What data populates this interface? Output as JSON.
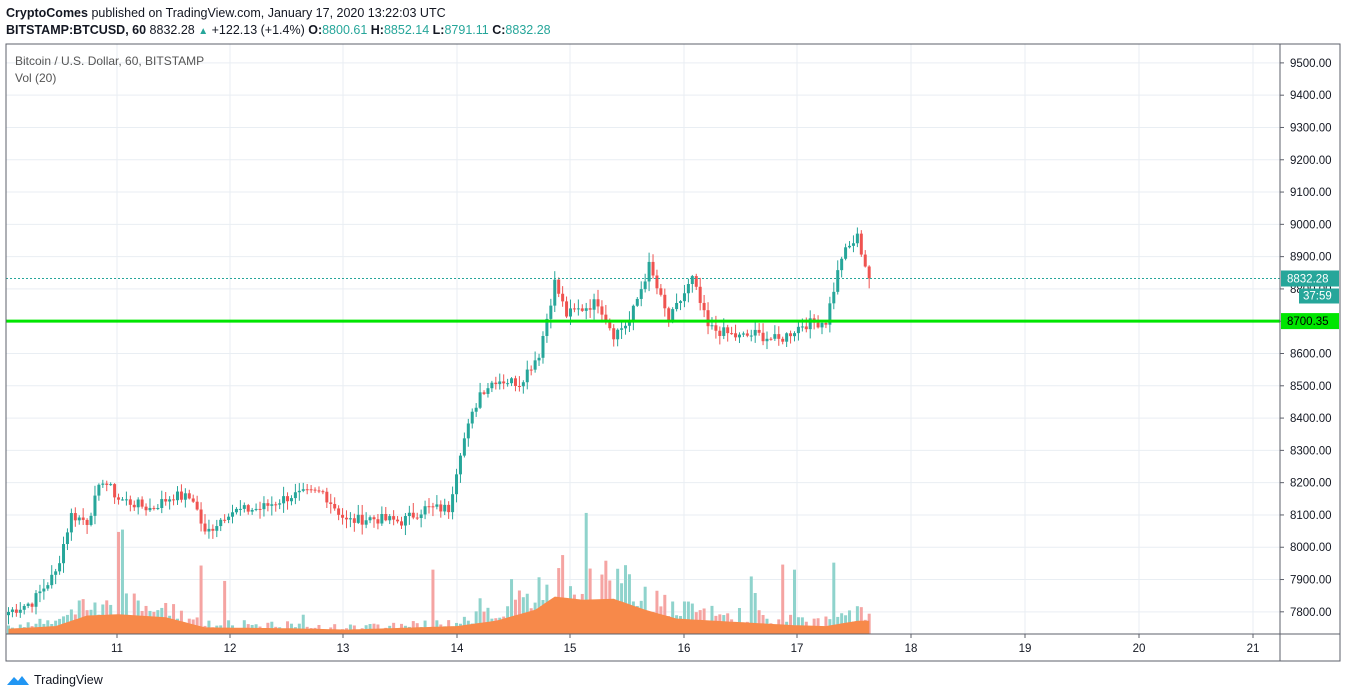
{
  "header": {
    "publisher": "CryptoComes",
    "published_text": "published on TradingView.com, January 17, 2020 13:22:03 UTC",
    "symbol": "BITSTAMP:BTCUSD, 60",
    "last": "8832.28",
    "change": "+122.13 (+1.4%)",
    "o_label": "O:",
    "o_value": "8800.61",
    "h_label": "H:",
    "h_value": "8852.14",
    "l_label": "L:",
    "l_value": "8791.11",
    "c_label": "C:",
    "c_value": "8832.28"
  },
  "legend": {
    "title": "Bitcoin / U.S. Dollar, 60, BITSTAMP",
    "volume": "Vol (20)"
  },
  "price_scale": {
    "last_price_label": "8832.28",
    "countdown": "37:59",
    "level_label": "8700.35"
  },
  "footer": {
    "brand": "TradingView"
  },
  "colors": {
    "up": "#26a69a",
    "down": "#ef5350",
    "level_line": "#00e600",
    "volume_ma": "#f7894a",
    "grid": "#e9eef3"
  },
  "chart_data": {
    "type": "candlestick",
    "title": "Bitcoin / U.S. Dollar, 60, BITSTAMP",
    "y_ticks": [
      "9500.00",
      "9400.00",
      "9300.00",
      "9200.00",
      "9100.00",
      "9000.00",
      "8900.00",
      "8800.00",
      "8700.00",
      "8600.00",
      "8500.00",
      "8400.00",
      "8300.00",
      "8200.00",
      "8100.00",
      "8000.00",
      "7900.00",
      "7800.00"
    ],
    "ylim": [
      7740,
      9550
    ],
    "x_ticks": [
      "11",
      "12",
      "13",
      "14",
      "15",
      "16",
      "17",
      "18",
      "19",
      "20",
      "21"
    ],
    "last_price": 8832.28,
    "horizontal_level": 8700.35,
    "anchors": [
      {
        "t": 0,
        "p": 7800
      },
      {
        "t": 6,
        "p": 7830
      },
      {
        "t": 12,
        "p": 7920
      },
      {
        "t": 16,
        "p": 8100
      },
      {
        "t": 20,
        "p": 8080
      },
      {
        "t": 24,
        "p": 8210
      },
      {
        "t": 28,
        "p": 8150
      },
      {
        "t": 36,
        "p": 8120
      },
      {
        "t": 42,
        "p": 8160
      },
      {
        "t": 47,
        "p": 8150
      },
      {
        "t": 50,
        "p": 8040
      },
      {
        "t": 56,
        "p": 8110
      },
      {
        "t": 64,
        "p": 8120
      },
      {
        "t": 72,
        "p": 8160
      },
      {
        "t": 80,
        "p": 8170
      },
      {
        "t": 86,
        "p": 8080
      },
      {
        "t": 92,
        "p": 8090
      },
      {
        "t": 100,
        "p": 8080
      },
      {
        "t": 106,
        "p": 8120
      },
      {
        "t": 112,
        "p": 8120
      },
      {
        "t": 115,
        "p": 8300
      },
      {
        "t": 120,
        "p": 8480
      },
      {
        "t": 124,
        "p": 8520
      },
      {
        "t": 130,
        "p": 8510
      },
      {
        "t": 135,
        "p": 8600
      },
      {
        "t": 139,
        "p": 8820
      },
      {
        "t": 142,
        "p": 8720
      },
      {
        "t": 150,
        "p": 8760
      },
      {
        "t": 154,
        "p": 8660
      },
      {
        "t": 158,
        "p": 8700
      },
      {
        "t": 163,
        "p": 8870
      },
      {
        "t": 168,
        "p": 8700
      },
      {
        "t": 174,
        "p": 8830
      },
      {
        "t": 178,
        "p": 8680
      },
      {
        "t": 186,
        "p": 8650
      },
      {
        "t": 190,
        "p": 8660
      },
      {
        "t": 196,
        "p": 8640
      },
      {
        "t": 202,
        "p": 8690
      },
      {
        "t": 208,
        "p": 8700
      },
      {
        "t": 212,
        "p": 8900
      },
      {
        "t": 216,
        "p": 8960
      },
      {
        "t": 219,
        "p": 8832
      }
    ],
    "volume": {
      "label": "Vol (20)",
      "ma_anchors": [
        {
          "t": 0,
          "v": 0.12
        },
        {
          "t": 12,
          "v": 0.18
        },
        {
          "t": 20,
          "v": 0.42
        },
        {
          "t": 28,
          "v": 0.45
        },
        {
          "t": 40,
          "v": 0.38
        },
        {
          "t": 50,
          "v": 0.15
        },
        {
          "t": 72,
          "v": 0.13
        },
        {
          "t": 86,
          "v": 0.1
        },
        {
          "t": 100,
          "v": 0.14
        },
        {
          "t": 114,
          "v": 0.18
        },
        {
          "t": 124,
          "v": 0.3
        },
        {
          "t": 134,
          "v": 0.55
        },
        {
          "t": 139,
          "v": 0.85
        },
        {
          "t": 146,
          "v": 0.78
        },
        {
          "t": 154,
          "v": 0.8
        },
        {
          "t": 162,
          "v": 0.55
        },
        {
          "t": 170,
          "v": 0.35
        },
        {
          "t": 180,
          "v": 0.3
        },
        {
          "t": 190,
          "v": 0.25
        },
        {
          "t": 200,
          "v": 0.2
        },
        {
          "t": 208,
          "v": 0.18
        },
        {
          "t": 216,
          "v": 0.3
        },
        {
          "t": 219,
          "v": 0.3
        }
      ]
    }
  }
}
